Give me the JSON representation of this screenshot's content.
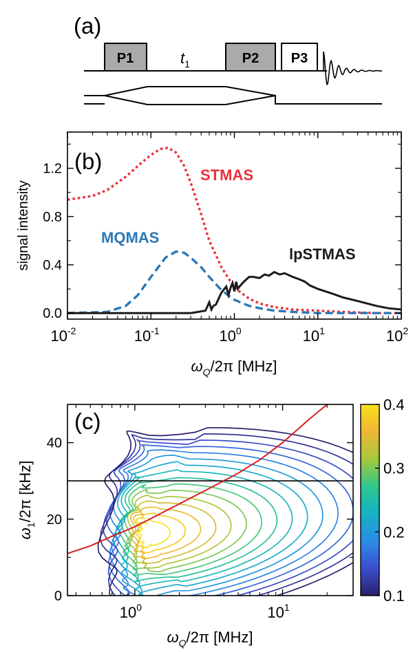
{
  "panel_a": {
    "label": "(a)",
    "pulses": [
      "P1",
      "P2",
      "P3"
    ],
    "delay_label": "t",
    "delay_sub": "1"
  },
  "chart_data": [
    {
      "panel": "(b)",
      "type": "line",
      "xscale": "log",
      "xlim": [
        0.01,
        100
      ],
      "ylim": [
        -0.05,
        1.5
      ],
      "xlabel": "ω_Q/2π [MHz]",
      "ylabel": "signal intensity",
      "xticks": [
        0.01,
        0.1,
        1,
        10,
        100
      ],
      "yticks": [
        0.0,
        0.4,
        0.8,
        1.2
      ],
      "ytick_labels": [
        "0.0",
        "0.4",
        "0.8",
        "1.2"
      ],
      "series": [
        {
          "name": "STMAS",
          "color": "#e8303a",
          "style": "dotted",
          "x": [
            0.01,
            0.02,
            0.03,
            0.05,
            0.07,
            0.1,
            0.13,
            0.16,
            0.2,
            0.25,
            0.3,
            0.4,
            0.5,
            0.7,
            1.0,
            1.5,
            2,
            3,
            5,
            10,
            20,
            50,
            100
          ],
          "y": [
            0.94,
            0.97,
            1.02,
            1.13,
            1.22,
            1.31,
            1.36,
            1.37,
            1.33,
            1.22,
            1.08,
            0.82,
            0.6,
            0.38,
            0.21,
            0.12,
            0.08,
            0.05,
            0.03,
            0.02,
            0.01,
            0.0,
            0.0
          ]
        },
        {
          "name": "MQMAS",
          "color": "#2a78b8",
          "style": "dashed",
          "x": [
            0.01,
            0.03,
            0.05,
            0.07,
            0.1,
            0.15,
            0.2,
            0.25,
            0.3,
            0.4,
            0.5,
            0.7,
            1.0,
            1.5,
            2,
            3,
            5,
            10,
            100
          ],
          "y": [
            0.0,
            0.01,
            0.06,
            0.15,
            0.3,
            0.46,
            0.51,
            0.5,
            0.46,
            0.38,
            0.3,
            0.19,
            0.11,
            0.06,
            0.04,
            0.02,
            0.01,
            0.0,
            0.0
          ]
        },
        {
          "name": "lpSTMAS",
          "color": "#1a1a1a",
          "style": "solid",
          "x": [
            0.01,
            0.3,
            0.45,
            0.5,
            0.53,
            0.56,
            0.6,
            0.7,
            0.8,
            0.85,
            0.9,
            0.95,
            1.0,
            1.05,
            1.1,
            1.15,
            1.3,
            1.5,
            1.7,
            2.0,
            2.3,
            2.6,
            3.0,
            3.5,
            4.0,
            5.0,
            6.0,
            7.0,
            8.0,
            10,
            15,
            20,
            30,
            50,
            70,
            100
          ],
          "y": [
            0.0,
            0.0,
            0.02,
            0.09,
            0.03,
            0.06,
            0.07,
            0.17,
            0.22,
            0.15,
            0.21,
            0.25,
            0.18,
            0.26,
            0.2,
            0.22,
            0.26,
            0.3,
            0.3,
            0.29,
            0.32,
            0.31,
            0.34,
            0.32,
            0.33,
            0.3,
            0.28,
            0.26,
            0.23,
            0.2,
            0.16,
            0.13,
            0.1,
            0.06,
            0.04,
            0.03
          ]
        }
      ]
    },
    {
      "panel": "(c)",
      "type": "heatmap",
      "xscale": "log",
      "xlim": [
        0.35,
        30
      ],
      "ylim": [
        0,
        50
      ],
      "xlabel": "ω_Q/2π [MHz]",
      "ylabel": "ω_1/2π [kHz]",
      "xticks": [
        1,
        10
      ],
      "yticks": [
        0,
        20,
        40
      ],
      "colorbar": {
        "min": 0.1,
        "max": 0.4,
        "ticks": [
          "0.1",
          "0.2",
          "0.3",
          "0.4"
        ],
        "colors": [
          "#2c1f6b",
          "#3b4fcf",
          "#2b8ce8",
          "#14b3c4",
          "#2fc68c",
          "#a5c93a",
          "#f0b634",
          "#f7e21c"
        ]
      },
      "contour_levels": 16,
      "horizontal_line_y": 30,
      "red_curve": {
        "color": "#d42020",
        "x": [
          0.35,
          0.5,
          0.7,
          1.0,
          1.5,
          2.0,
          3.0,
          5.0,
          7.0,
          10,
          15,
          20
        ],
        "y": [
          11,
          13,
          15.5,
          18,
          21.5,
          24,
          27.5,
          32,
          35.5,
          40,
          46,
          50
        ]
      },
      "core_x": 1.2,
      "core_y": 16
    }
  ]
}
